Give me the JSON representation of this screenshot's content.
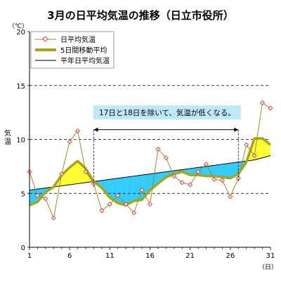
{
  "chart_data": {
    "type": "line",
    "title": "3月の日平均気温の推移（日立市役所）",
    "ylabel": "気温",
    "y_unit": "（℃）",
    "x_unit": "（日）",
    "xlim": [
      1,
      31
    ],
    "ylim": [
      0,
      20
    ],
    "x_ticks": [
      1,
      6,
      11,
      16,
      21,
      26,
      31
    ],
    "y_ticks": [
      0,
      5,
      10,
      15,
      20
    ],
    "dashed_gridlines_y": [
      5,
      10,
      15
    ],
    "legend_position": "top-left",
    "annotation": {
      "text": "17日と18日を除いて、気温が低くなる。",
      "x_from": 9,
      "x_to": 27,
      "arrow_y": 10.9
    },
    "x": [
      1,
      2,
      3,
      4,
      5,
      6,
      7,
      8,
      9,
      10,
      11,
      12,
      13,
      14,
      15,
      16,
      17,
      18,
      19,
      20,
      21,
      22,
      23,
      24,
      25,
      26,
      27,
      28,
      29,
      30,
      31
    ],
    "series": [
      {
        "name": "日平均気温",
        "style": "line-with-diamond-markers",
        "color": "#9a8c2a",
        "marker_color": "#e0403a",
        "values": [
          7.0,
          4.8,
          4.5,
          2.7,
          6.8,
          9.8,
          10.8,
          7.0,
          5.9,
          3.4,
          4.0,
          4.8,
          4.0,
          3.2,
          5.3,
          4.0,
          9.1,
          8.3,
          6.6,
          6.0,
          5.8,
          7.0,
          7.7,
          6.3,
          6.2,
          4.7,
          6.4,
          9.5,
          8.5,
          13.4,
          12.9
        ]
      },
      {
        "name": "5日間移動平均",
        "style": "thick-line",
        "color": "#a8a614",
        "values": [
          3.9,
          4.2,
          5.1,
          5.6,
          6.7,
          7.4,
          8.0,
          7.3,
          6.1,
          5.5,
          4.6,
          4.1,
          3.9,
          4.3,
          4.4,
          5.3,
          5.9,
          6.5,
          6.8,
          7.0,
          6.7,
          6.7,
          6.6,
          6.6,
          6.5,
          6.4,
          6.8,
          7.9,
          10.1,
          10.1,
          9.5
        ]
      },
      {
        "name": "平年日平均気温",
        "style": "thin-line",
        "color": "#000000",
        "values": [
          5.3,
          5.4,
          5.5,
          5.6,
          5.7,
          5.8,
          5.9,
          6.0,
          6.1,
          6.2,
          6.3,
          6.4,
          6.5,
          6.6,
          6.7,
          6.8,
          6.9,
          7.0,
          7.1,
          7.2,
          7.3,
          7.4,
          7.5,
          7.6,
          7.7,
          7.8,
          7.9,
          8.0,
          8.1,
          8.3,
          8.5
        ]
      }
    ],
    "fills": {
      "above_normal_color": "#ffff33",
      "below_normal_color": "#33ccff"
    }
  }
}
